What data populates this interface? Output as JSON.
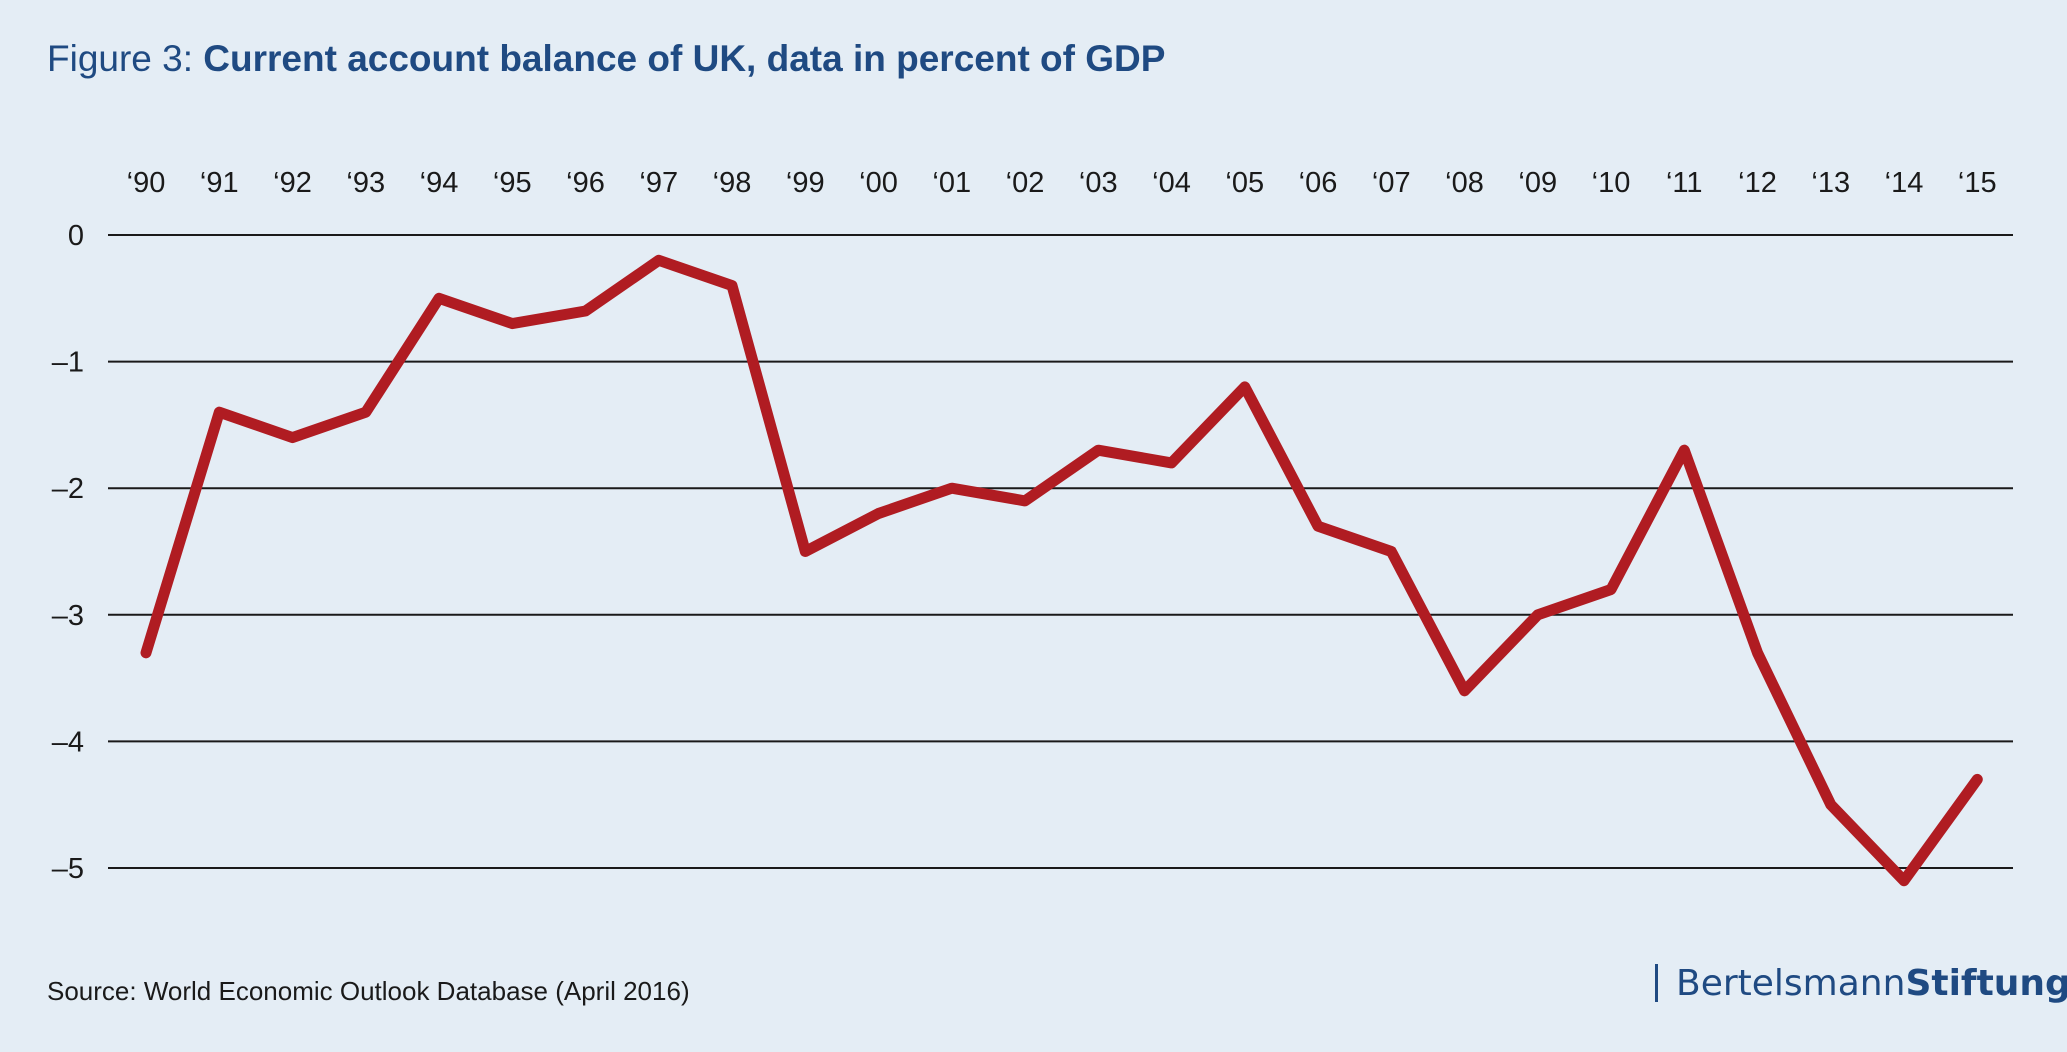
{
  "header": {
    "title_prefix": "Figure 3: ",
    "title_main": "Current account balance of UK, data in percent of GDP"
  },
  "footer": {
    "source": "Source: World Economic Outlook Database (April 2016)",
    "logo_part1": "Bertelsmann",
    "logo_part2": "Stiftung"
  },
  "colors": {
    "background": "#e4edf5",
    "title": "#1f4a82",
    "series": "#b01c22",
    "grid": "#1a1a1a"
  },
  "chart_data": {
    "type": "line",
    "categories": [
      "‘90",
      "‘91",
      "‘92",
      "‘93",
      "‘94",
      "‘95",
      "‘96",
      "‘97",
      "‘98",
      "‘99",
      "‘00",
      "‘01",
      "‘02",
      "‘03",
      "‘04",
      "‘05",
      "‘06",
      "‘07",
      "‘08",
      "‘09",
      "‘10",
      "‘11",
      "‘12",
      "‘13",
      "‘14",
      "‘15"
    ],
    "series": [
      {
        "values": [
          -3.3,
          -1.4,
          -1.6,
          -1.4,
          -0.5,
          -0.7,
          -0.6,
          -0.2,
          -0.4,
          -2.5,
          -2.2,
          -2.0,
          -2.1,
          -1.7,
          -1.8,
          -1.2,
          -2.3,
          -2.5,
          -3.6,
          -3.0,
          -2.8,
          -1.7,
          -3.3,
          -4.5,
          -5.1,
          -4.3
        ]
      }
    ],
    "yticks": [
      0,
      -1,
      -2,
      -3,
      -4,
      -5
    ],
    "ytick_labels": [
      "0",
      "–1",
      "–2",
      "–3",
      "–4",
      "–5"
    ],
    "ylim": [
      -5,
      0
    ],
    "x_axis_position": "top",
    "grid": true,
    "title": "Current account balance of UK, data in percent of GDP",
    "xlabel": "",
    "ylabel": ""
  }
}
